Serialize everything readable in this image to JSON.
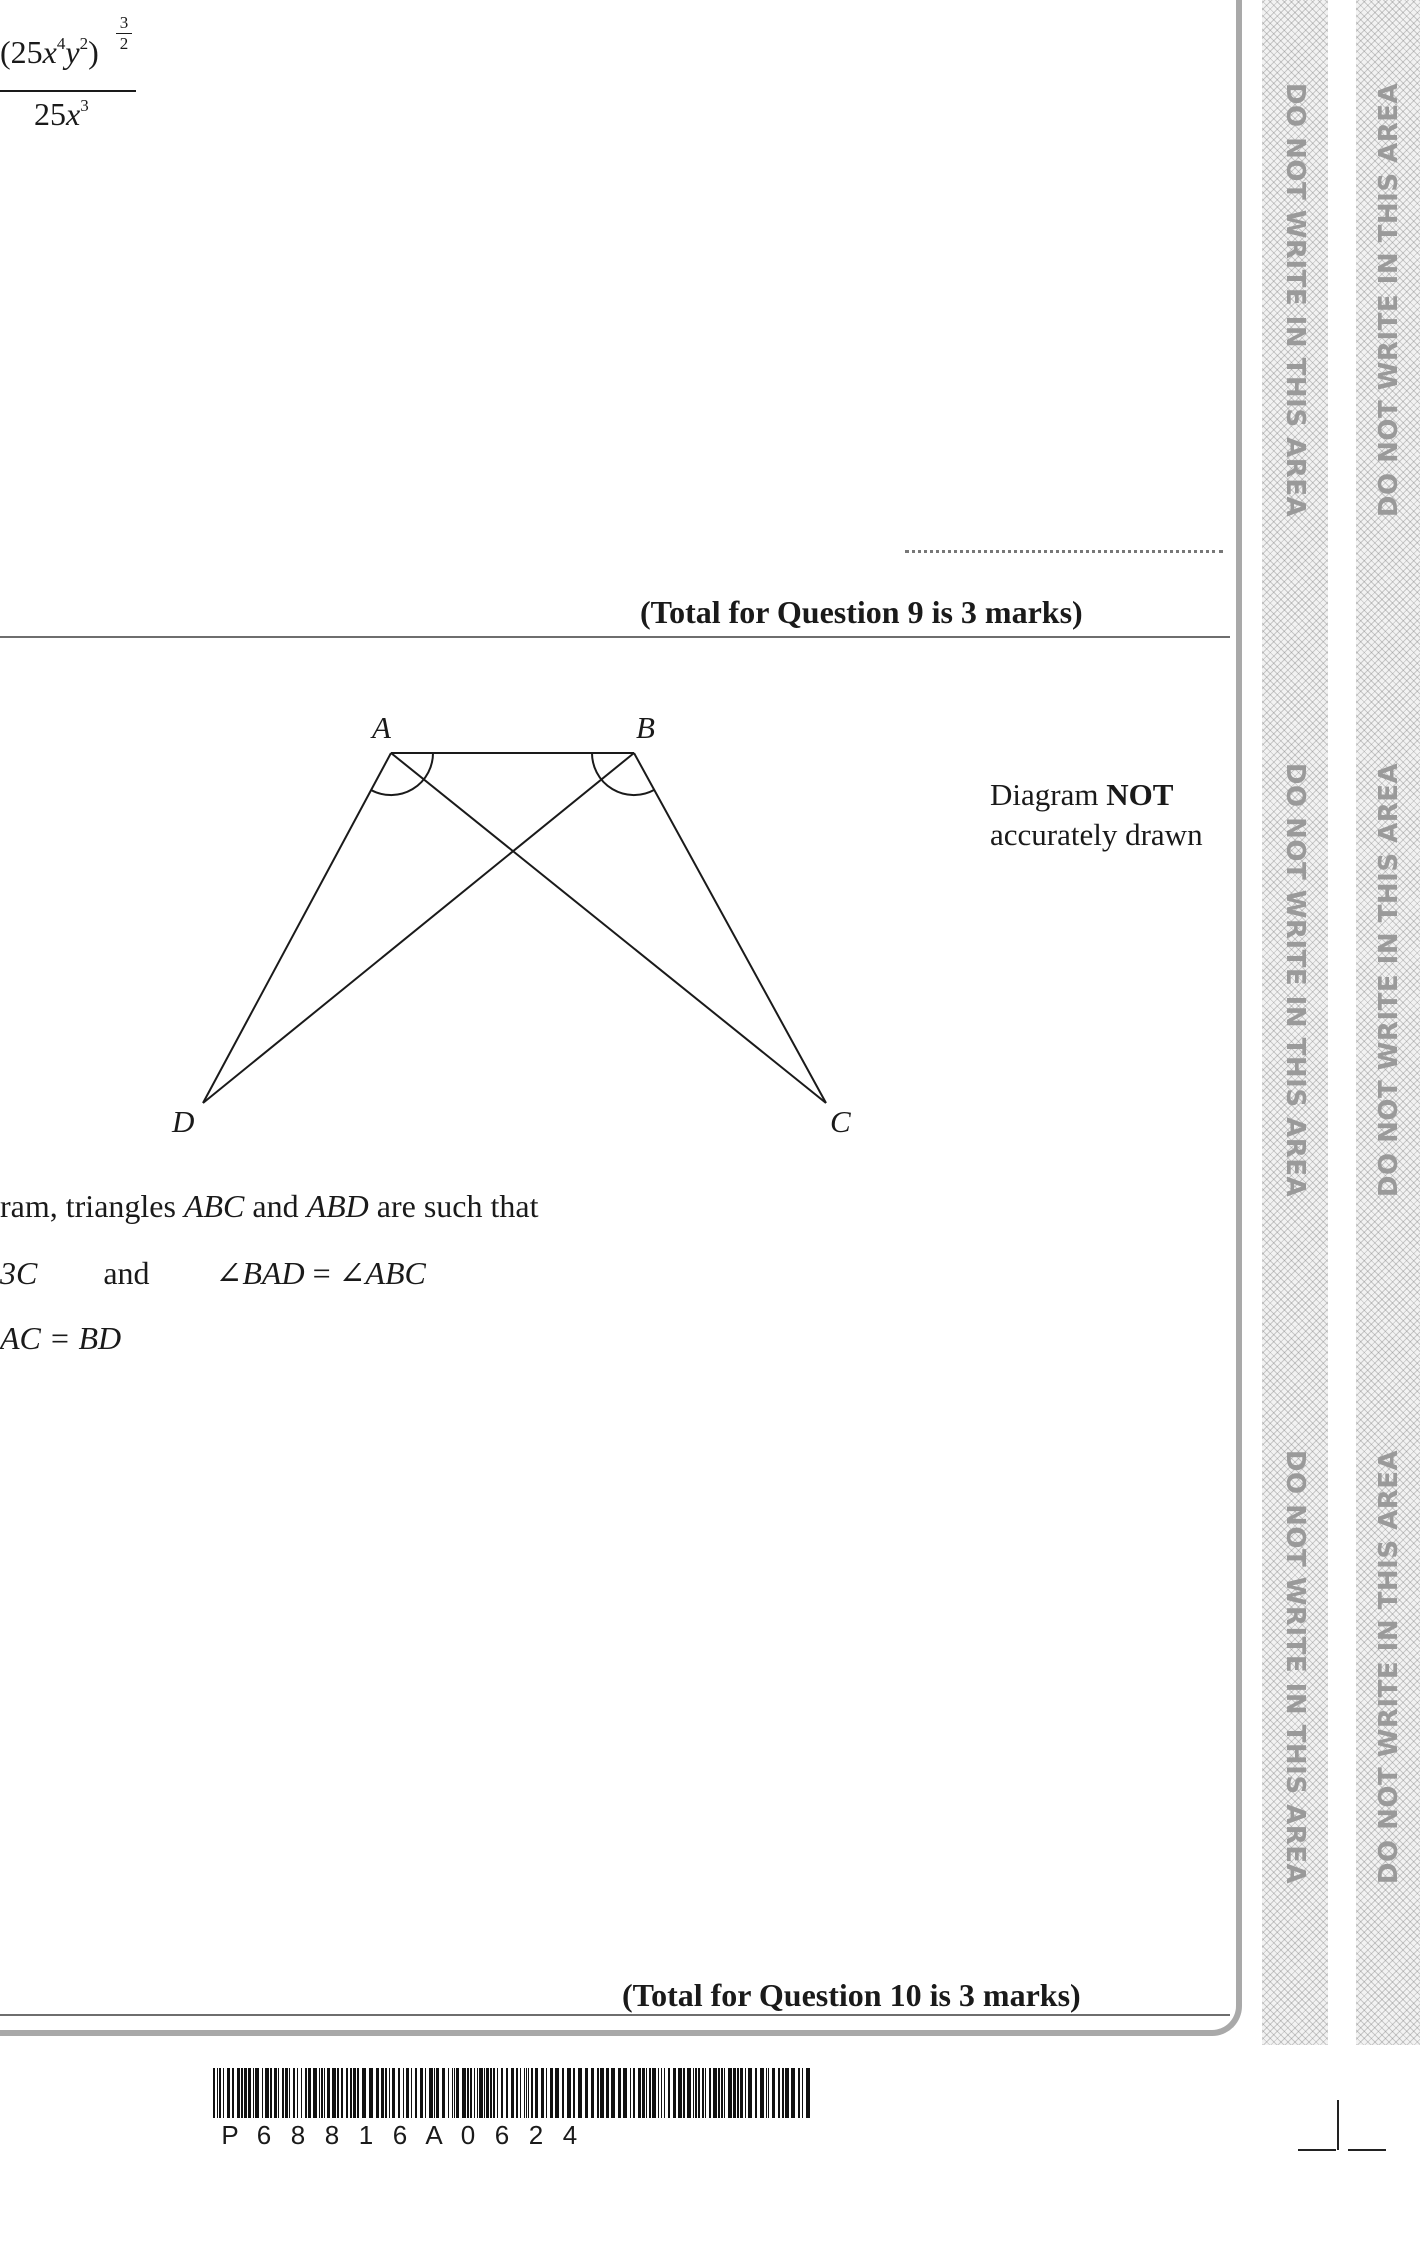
{
  "q9": {
    "expression": {
      "numerator_base": "25",
      "x_power": "4",
      "y_power": "2",
      "outer_exponent_num": "3",
      "outer_exponent_den": "2",
      "denominator_base": "25",
      "denominator_power": "3"
    },
    "total": "(Total for Question 9 is 3 marks)"
  },
  "q10": {
    "labels": {
      "A": "A",
      "B": "B",
      "C": "C",
      "D": "D"
    },
    "diagram_note_prefix": "Diagram ",
    "diagram_note_bold": "NOT",
    "diagram_note_line2": "accurately drawn",
    "line1_prefix": "ram, triangles ",
    "line1_abc": "ABC",
    "line1_mid": " and ",
    "line1_abd": "ABD",
    "line1_suffix": " are such that",
    "line2_start": "3C",
    "line2_and": "and",
    "line2_angle_left": "∠BAD",
    "line2_eq": " = ",
    "line2_angle_right": "∠ABC",
    "line3": "AC = BD",
    "total": "(Total for Question 10 is 3 marks)"
  },
  "margin": {
    "warning": "DO NOT WRITE IN THIS AREA"
  },
  "barcode": {
    "digits": [
      "P",
      "6",
      "8",
      "8",
      "1",
      "6",
      "A",
      "0",
      "6",
      "2",
      "4"
    ]
  }
}
